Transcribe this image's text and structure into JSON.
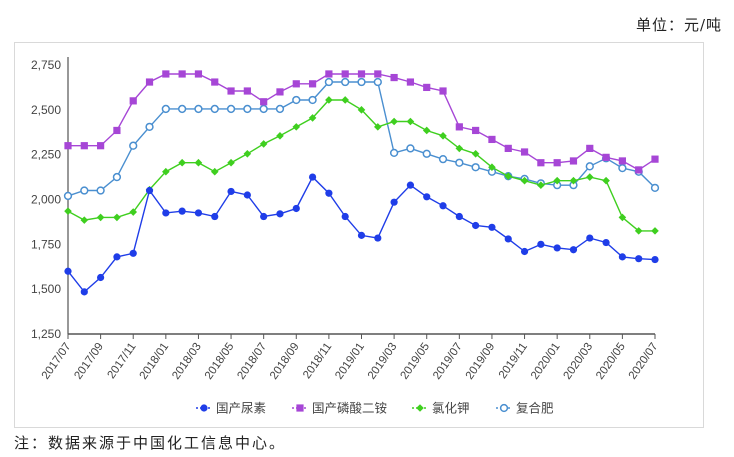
{
  "unit_label": "单位：元/吨",
  "note": "注：数据来源于中国化工信息中心。",
  "chart_data": {
    "type": "line",
    "title": "",
    "xlabel": "",
    "ylabel": "元/吨",
    "ylim": [
      1250,
      2750
    ],
    "yticks": [
      1250,
      1500,
      1750,
      2000,
      2250,
      2500,
      2750
    ],
    "ytick_labels": [
      "1,250",
      "1,500",
      "1,750",
      "2,000",
      "2,250",
      "2,500",
      "2,750"
    ],
    "grid": false,
    "legend_position": "bottom",
    "x": [
      "2017/07",
      "2017/08",
      "2017/09",
      "2017/10",
      "2017/11",
      "2017/12",
      "2018/01",
      "2018/02",
      "2018/03",
      "2018/04",
      "2018/05",
      "2018/06",
      "2018/07",
      "2018/08",
      "2018/09",
      "2018/10",
      "2018/11",
      "2018/12",
      "2019/01",
      "2019/02",
      "2019/03",
      "2019/04",
      "2019/05",
      "2019/06",
      "2019/07",
      "2019/08",
      "2019/09",
      "2019/10",
      "2019/11",
      "2019/12",
      "2020/01",
      "2020/02",
      "2020/03",
      "2020/04",
      "2020/05",
      "2020/06",
      "2020/07"
    ],
    "xtick_labels": [
      "2017/07",
      "2017/09",
      "2017/11",
      "2018/01",
      "2018/03",
      "2018/05",
      "2018/07",
      "2018/09",
      "2018/11",
      "2019/01",
      "2019/03",
      "2019/05",
      "2019/07",
      "2019/09",
      "2019/11",
      "2020/01",
      "2020/03",
      "2020/05",
      "2020/07"
    ],
    "series": [
      {
        "name": "国产尿素",
        "color": "#1f3de8",
        "marker": "circle",
        "values": [
          1600,
          1485,
          1565,
          1680,
          1700,
          2050,
          1925,
          1935,
          1925,
          1905,
          2045,
          2025,
          1905,
          1920,
          1950,
          2125,
          2035,
          1905,
          1800,
          1785,
          1985,
          2080,
          2015,
          1965,
          1905,
          1855,
          1845,
          1780,
          1710,
          1750,
          1730,
          1720,
          1785,
          1760,
          1680,
          1670,
          1665
        ]
      },
      {
        "name": "国产磷酸二铵",
        "color": "#a646d6",
        "marker": "square",
        "values": [
          2300,
          2300,
          2300,
          2385,
          2550,
          2655,
          2700,
          2700,
          2700,
          2655,
          2605,
          2605,
          2545,
          2600,
          2645,
          2645,
          2700,
          2700,
          2700,
          2700,
          2680,
          2655,
          2625,
          2605,
          2405,
          2385,
          2335,
          2285,
          2265,
          2205,
          2205,
          2215,
          2285,
          2235,
          2215,
          2165,
          2225
        ]
      },
      {
        "name": "氯化钾",
        "color": "#3fcf1f",
        "marker": "diamond",
        "values": [
          1935,
          1885,
          1900,
          1900,
          1930,
          2055,
          2155,
          2205,
          2205,
          2155,
          2205,
          2255,
          2310,
          2355,
          2405,
          2455,
          2555,
          2555,
          2500,
          2405,
          2435,
          2435,
          2385,
          2355,
          2285,
          2255,
          2180,
          2130,
          2105,
          2080,
          2105,
          2105,
          2125,
          2105,
          1900,
          1825,
          1825
        ]
      },
      {
        "name": "复合肥",
        "color": "#4a8fd0",
        "marker": "open-circle",
        "values": [
          2020,
          2050,
          2050,
          2125,
          2300,
          2405,
          2505,
          2505,
          2505,
          2505,
          2505,
          2505,
          2505,
          2505,
          2555,
          2555,
          2655,
          2655,
          2655,
          2655,
          2260,
          2285,
          2255,
          2225,
          2205,
          2180,
          2155,
          2130,
          2115,
          2090,
          2080,
          2080,
          2185,
          2230,
          2175,
          2155,
          2065
        ]
      }
    ]
  }
}
